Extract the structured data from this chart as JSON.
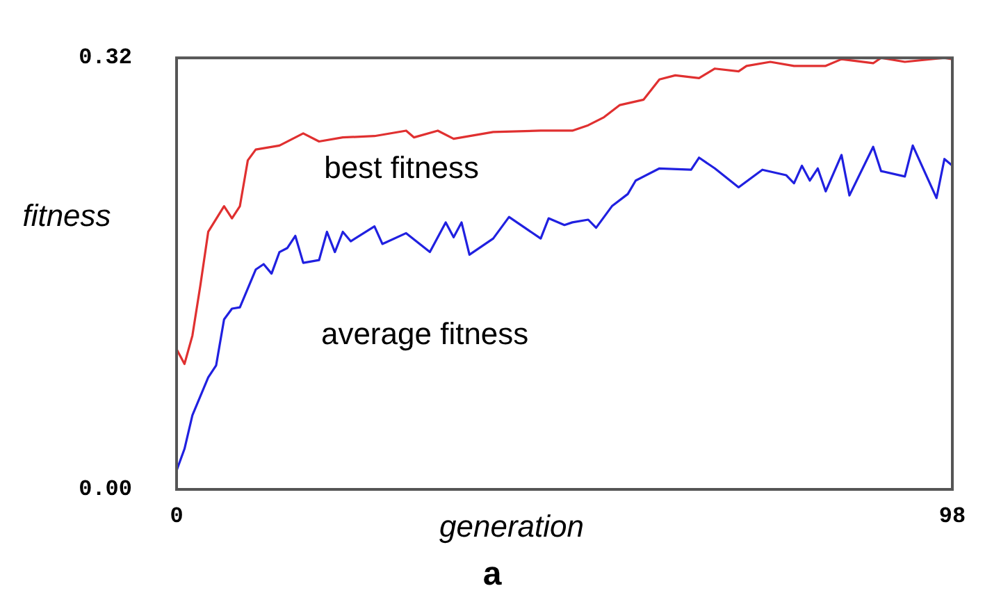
{
  "chart_data": {
    "type": "line",
    "xlabel": "generation",
    "ylabel": "fitness",
    "xlim": [
      0,
      98
    ],
    "xticks": [
      0,
      98
    ],
    "ylim": [
      0,
      0.32
    ],
    "yticks": [
      {
        "value": 0,
        "label": "0.00"
      },
      {
        "value": 0.32,
        "label": "0.32"
      }
    ],
    "legend": false,
    "marker": "none",
    "annotations": [
      "a"
    ],
    "series": [
      {
        "name": "best fitness",
        "color": "#e03030",
        "x": [
          0,
          1,
          2,
          3,
          4,
          6,
          7,
          8,
          9,
          10,
          13,
          16,
          18,
          21,
          25,
          29,
          30,
          33,
          35,
          40,
          46,
          50,
          52,
          54,
          56,
          59,
          61,
          63,
          66,
          68,
          71,
          72,
          75,
          78,
          82,
          84,
          88,
          89,
          92,
          97,
          98
        ],
        "values": [
          0.104,
          0.093,
          0.114,
          0.151,
          0.191,
          0.21,
          0.201,
          0.21,
          0.244,
          0.252,
          0.255,
          0.264,
          0.258,
          0.261,
          0.262,
          0.266,
          0.261,
          0.266,
          0.26,
          0.265,
          0.266,
          0.266,
          0.27,
          0.276,
          0.285,
          0.289,
          0.304,
          0.307,
          0.305,
          0.312,
          0.31,
          0.314,
          0.317,
          0.314,
          0.314,
          0.319,
          0.316,
          0.32,
          0.317,
          0.32,
          0.319
        ]
      },
      {
        "name": "average fitness",
        "color": "#2020e0",
        "x": [
          0,
          1,
          2,
          4,
          5,
          6,
          7,
          8,
          10,
          11,
          12,
          13,
          14,
          15,
          16,
          18,
          19,
          20,
          21,
          22,
          25,
          26,
          29,
          32,
          34,
          35,
          36,
          37,
          40,
          42,
          46,
          47,
          49,
          50,
          52,
          53,
          55,
          57,
          58,
          61,
          65,
          66,
          68,
          71,
          74,
          77,
          78,
          79,
          80,
          81,
          82,
          84,
          85,
          88,
          89,
          92,
          93,
          96,
          97,
          98
        ],
        "values": [
          0.014,
          0.03,
          0.055,
          0.083,
          0.092,
          0.126,
          0.134,
          0.135,
          0.163,
          0.167,
          0.16,
          0.176,
          0.179,
          0.188,
          0.168,
          0.17,
          0.191,
          0.176,
          0.191,
          0.184,
          0.195,
          0.182,
          0.19,
          0.176,
          0.198,
          0.187,
          0.198,
          0.174,
          0.186,
          0.202,
          0.186,
          0.201,
          0.196,
          0.198,
          0.2,
          0.194,
          0.21,
          0.219,
          0.229,
          0.238,
          0.237,
          0.246,
          0.238,
          0.224,
          0.237,
          0.233,
          0.227,
          0.24,
          0.229,
          0.238,
          0.221,
          0.248,
          0.218,
          0.254,
          0.236,
          0.232,
          0.255,
          0.216,
          0.245,
          0.24
        ]
      }
    ]
  }
}
